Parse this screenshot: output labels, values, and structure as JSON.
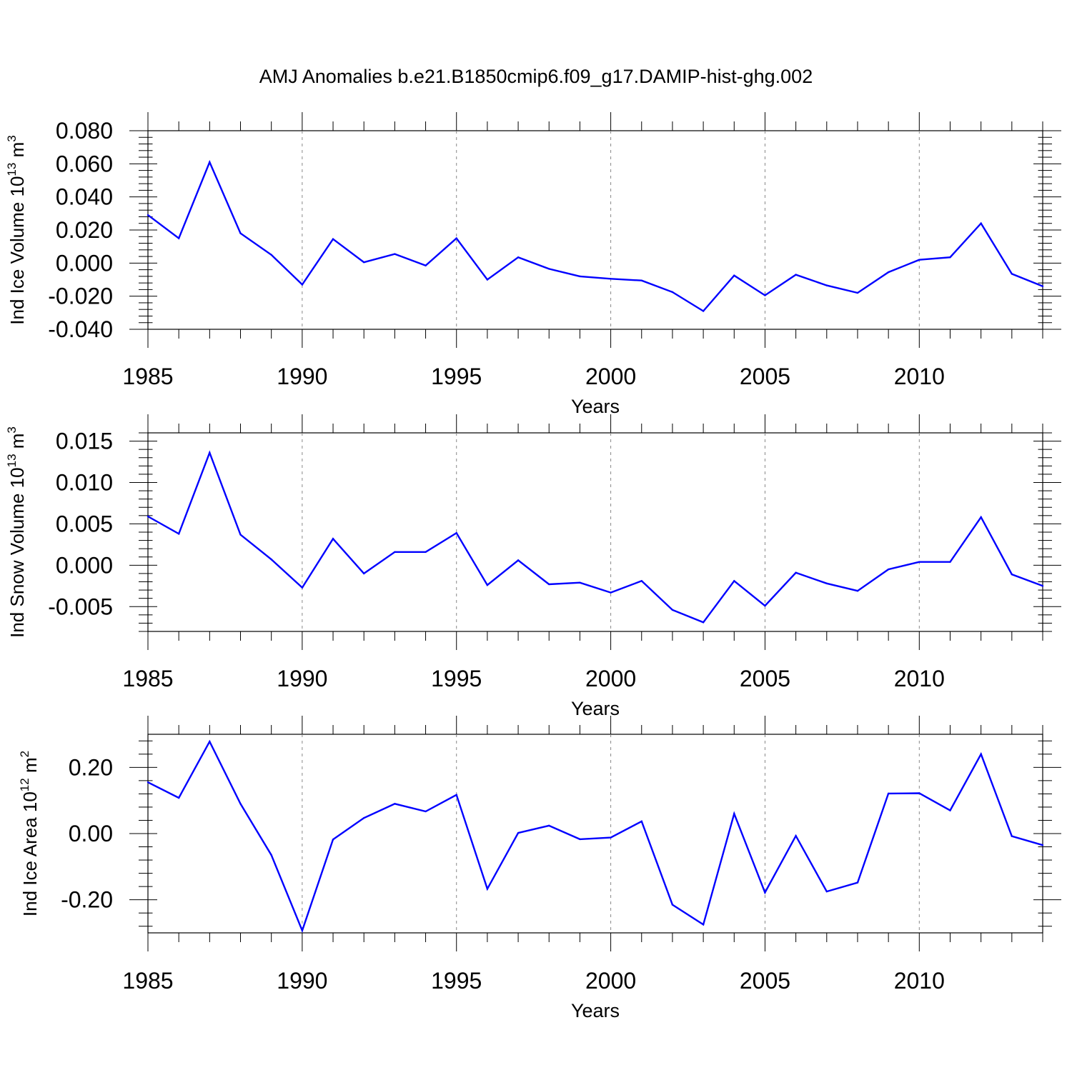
{
  "title": "AMJ Anomalies b.e21.B1850cmip6.f09_g17.DAMIP-hist-ghg.002",
  "line_color": "#0000ff",
  "chart_data": [
    {
      "type": "line",
      "ylabel": "Ind Ice Volume 10",
      "ylabel_exp": "13",
      "ylabel_unit": " m",
      "ylabel_unit_exp": "3",
      "xlabel": "Years",
      "xlim": [
        1985,
        2014
      ],
      "ylim": [
        -0.04,
        0.08
      ],
      "yticks": [
        -0.04,
        -0.02,
        0.0,
        0.02,
        0.04,
        0.06,
        0.08
      ],
      "ytick_labels": [
        "-0.040",
        "-0.020",
        "0.000",
        "0.020",
        "0.040",
        "0.060",
        "0.080"
      ],
      "xticks": [
        1985,
        1990,
        1995,
        2000,
        2005,
        2010
      ],
      "xtick_labels": [
        "1985",
        "1990",
        "1995",
        "2000",
        "2005",
        "2010"
      ],
      "x": [
        1985,
        1986,
        1987,
        1988,
        1989,
        1990,
        1991,
        1992,
        1993,
        1994,
        1995,
        1996,
        1997,
        1998,
        1999,
        2000,
        2001,
        2002,
        2003,
        2004,
        2005,
        2006,
        2007,
        2008,
        2009,
        2010,
        2011,
        2012,
        2013,
        2014
      ],
      "values": [
        0.029,
        0.015,
        0.061,
        0.018,
        0.005,
        -0.013,
        0.0145,
        0.0005,
        0.0055,
        -0.0015,
        0.015,
        -0.01,
        0.0035,
        -0.0035,
        -0.008,
        -0.0095,
        -0.0105,
        -0.0175,
        -0.029,
        -0.0075,
        -0.0195,
        -0.007,
        -0.0135,
        -0.018,
        -0.0055,
        0.002,
        0.0035,
        0.024,
        -0.0065,
        -0.014
      ]
    },
    {
      "type": "line",
      "ylabel": "Ind Snow Volume 10",
      "ylabel_exp": "13",
      "ylabel_unit": " m",
      "ylabel_unit_exp": "3",
      "xlabel": "Years",
      "xlim": [
        1985,
        2014
      ],
      "ylim": [
        -0.008,
        0.016
      ],
      "yticks": [
        -0.005,
        0.0,
        0.005,
        0.01,
        0.015
      ],
      "ytick_labels": [
        "-0.005",
        "0.000",
        "0.005",
        "0.010",
        "0.015"
      ],
      "xticks": [
        1985,
        1990,
        1995,
        2000,
        2005,
        2010
      ],
      "xtick_labels": [
        "1985",
        "1990",
        "1995",
        "2000",
        "2005",
        "2010"
      ],
      "x": [
        1985,
        1986,
        1987,
        1988,
        1989,
        1990,
        1991,
        1992,
        1993,
        1994,
        1995,
        1996,
        1997,
        1998,
        1999,
        2000,
        2001,
        2002,
        2003,
        2004,
        2005,
        2006,
        2007,
        2008,
        2009,
        2010,
        2011,
        2012,
        2013,
        2014
      ],
      "values": [
        0.0059,
        0.0038,
        0.0136,
        0.0037,
        0.0007,
        -0.0027,
        0.0032,
        -0.001,
        0.0016,
        0.0016,
        0.0039,
        -0.0024,
        0.0006,
        -0.0023,
        -0.0021,
        -0.0033,
        -0.0019,
        -0.0054,
        -0.0069,
        -0.0019,
        -0.0049,
        -0.0009,
        -0.0022,
        -0.0031,
        -0.0005,
        0.0004,
        0.0004,
        0.0058,
        -0.0011,
        -0.0025
      ]
    },
    {
      "type": "line",
      "ylabel": "Ind Ice Area 10",
      "ylabel_exp": "12",
      "ylabel_unit": " m",
      "ylabel_unit_exp": "2",
      "xlabel": "Years",
      "xlim": [
        1985,
        2014
      ],
      "ylim": [
        -0.3,
        0.3
      ],
      "yticks": [
        -0.2,
        0.0,
        0.2
      ],
      "ytick_labels": [
        "-0.20",
        "0.00",
        "0.20"
      ],
      "xticks": [
        1985,
        1990,
        1995,
        2000,
        2005,
        2010
      ],
      "xtick_labels": [
        "1985",
        "1990",
        "1995",
        "2000",
        "2005",
        "2010"
      ],
      "x": [
        1985,
        1986,
        1987,
        1988,
        1989,
        1990,
        1991,
        1992,
        1993,
        1994,
        1995,
        1996,
        1997,
        1998,
        1999,
        2000,
        2001,
        2002,
        2003,
        2004,
        2005,
        2006,
        2007,
        2008,
        2009,
        2010,
        2011,
        2012,
        2013,
        2014
      ],
      "values": [
        0.155,
        0.108,
        0.278,
        0.09,
        -0.065,
        -0.293,
        -0.018,
        0.047,
        0.09,
        0.067,
        0.117,
        -0.167,
        0.002,
        0.024,
        -0.017,
        -0.012,
        0.037,
        -0.215,
        -0.275,
        0.06,
        -0.178,
        -0.007,
        -0.175,
        -0.148,
        0.121,
        0.122,
        0.07,
        0.24,
        -0.008,
        -0.035
      ]
    }
  ]
}
